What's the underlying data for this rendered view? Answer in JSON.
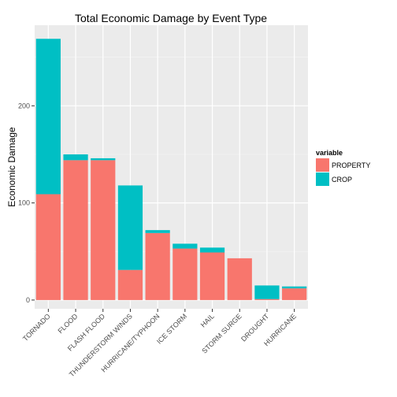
{
  "chart_data": {
    "type": "bar",
    "stacked": true,
    "title": "Total Economic Damage by Event Type",
    "xlabel": "",
    "ylabel": "Economic Damage",
    "ylim": [
      -9,
      283
    ],
    "yticks": [
      0,
      100,
      200
    ],
    "grid": true,
    "legend": {
      "title": "variable",
      "position": "right"
    },
    "categories": [
      "TORNADO",
      "FLOOD",
      "FLASH FLOOD",
      "THUNDERSTORM WINDS",
      "HURRICANE/TYPHOON",
      "ICE STORM",
      "HAIL",
      "STORM SURGE",
      "DROUGHT",
      "HURRICANE"
    ],
    "series": [
      {
        "name": "PROPERTY",
        "color": "#F8766D",
        "values": [
          109,
          144,
          144,
          31,
          69,
          53,
          49,
          43,
          1,
          12
        ]
      },
      {
        "name": "CROP",
        "color": "#00BFC4",
        "values": [
          160,
          6,
          2,
          87,
          3,
          5,
          5,
          0,
          14,
          2
        ]
      }
    ]
  }
}
